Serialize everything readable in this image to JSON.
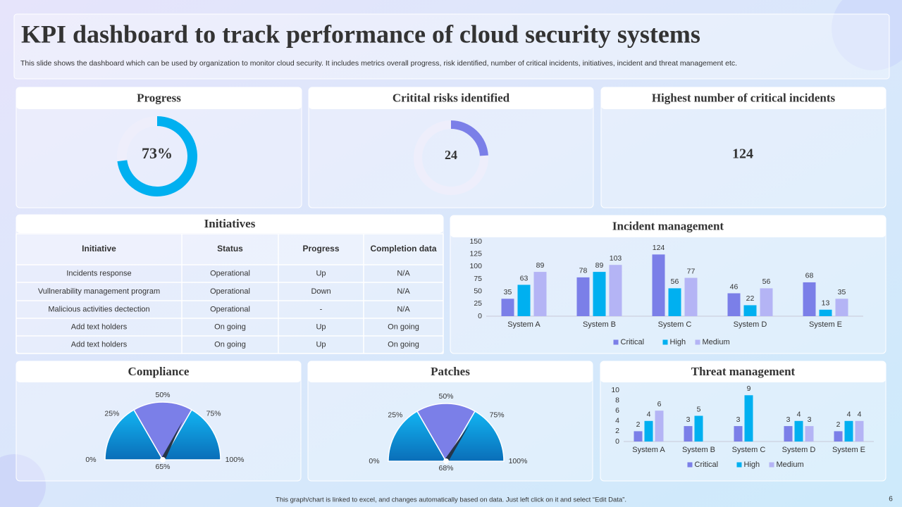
{
  "header": {
    "title": "KPI dashboard to track performance of cloud security systems",
    "subtitle": "This slide shows the dashboard which can be used by organization to monitor cloud security. It includes metrics overall progress, risk identified, number of critical incidents, initiatives, incident and threat management etc."
  },
  "incidents_card": {
    "title": "Highest number of critical incidents",
    "value": 124
  },
  "initiatives": {
    "title": "Initiatives",
    "columns": [
      "Initiative",
      "Status",
      "Progress",
      "Completion data"
    ],
    "rows": [
      [
        "Incidents response",
        "Operational",
        "Up",
        "N/A"
      ],
      [
        "Vullnerability management program",
        "Operational",
        "Down",
        "N/A"
      ],
      [
        "Malicious activities dectection",
        "Operational",
        "-",
        "N/A"
      ],
      [
        "Add text holders",
        "On going",
        "Up",
        "On going"
      ],
      [
        "Add text holders",
        "On going",
        "Up",
        "On going"
      ]
    ]
  },
  "chart_data": [
    {
      "type": "donut",
      "title": "Progress",
      "values": [
        73
      ],
      "value_labels": [
        "73%"
      ],
      "color": "#00b0f0"
    },
    {
      "type": "donut",
      "title": "Critital risks identified",
      "values": [
        24
      ],
      "color": "#7b7fe8"
    },
    {
      "type": "bar",
      "title": "Incident management",
      "categories": [
        "System A",
        "System B",
        "System C",
        "System D",
        "System E"
      ],
      "series": [
        {
          "name": "Critical",
          "color": "#7b7fe8",
          "values": [
            35,
            78,
            124,
            46,
            68
          ]
        },
        {
          "name": "High",
          "color": "#00b0f0",
          "values": [
            63,
            89,
            56,
            22,
            13
          ]
        },
        {
          "name": "Medium",
          "color": "#b4b4f5",
          "values": [
            89,
            103,
            77,
            56,
            35
          ]
        }
      ],
      "ylim": [
        0,
        150
      ],
      "yticks": [
        0,
        25,
        50,
        75,
        100,
        125,
        150
      ]
    },
    {
      "type": "gauge",
      "title": "Compliance",
      "values": [
        65
      ],
      "value_labels": [
        "65%"
      ],
      "ticks": [
        {
          "value": 0,
          "label": "0%"
        },
        {
          "value": 25,
          "label": "25%"
        },
        {
          "value": 50,
          "label": "50%"
        },
        {
          "value": 75,
          "label": "75%"
        },
        {
          "value": 100,
          "label": "100%"
        }
      ]
    },
    {
      "type": "gauge",
      "title": "Patches",
      "values": [
        68
      ],
      "value_labels": [
        "68%"
      ],
      "ticks": [
        {
          "value": 0,
          "label": "0%"
        },
        {
          "value": 25,
          "label": "25%"
        },
        {
          "value": 50,
          "label": "50%"
        },
        {
          "value": 75,
          "label": "75%"
        },
        {
          "value": 100,
          "label": "100%"
        }
      ]
    },
    {
      "type": "bar",
      "title": "Threat management",
      "categories": [
        "System A",
        "System B",
        "System C",
        "System D",
        "System E"
      ],
      "series": [
        {
          "name": "Critical",
          "color": "#7b7fe8",
          "values": [
            2,
            3,
            3,
            3,
            2
          ]
        },
        {
          "name": "High",
          "color": "#00b0f0",
          "values": [
            4,
            5,
            9,
            4,
            4
          ]
        },
        {
          "name": "Medium",
          "color": "#b4b4f5",
          "values": [
            6,
            null,
            null,
            3,
            4
          ]
        }
      ],
      "ylim": [
        0,
        10
      ],
      "yticks": [
        0,
        2,
        4,
        6,
        8,
        10
      ]
    }
  ],
  "footer": {
    "note": "This graph/chart is linked to excel, and changes automatically based on data. Just left click on it and select “Edit Data”.",
    "page": 6
  }
}
